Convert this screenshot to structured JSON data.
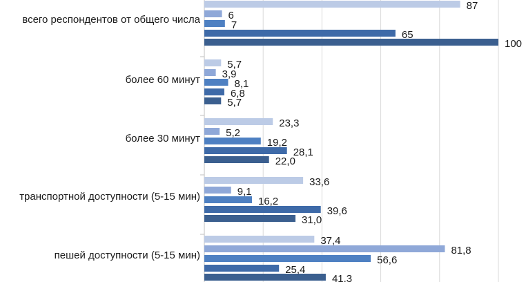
{
  "chart_data": {
    "type": "bar",
    "orientation": "horizontal",
    "categories": [
      "всего респондентов от общего числа",
      "более 60 минут",
      "более 30 минут",
      "транспортной доступности (5-15 мин)",
      "пешей доступности (5-15 мин)"
    ],
    "series": [
      {
        "values": [
          87,
          5.7,
          23.3,
          33.6,
          37.4
        ],
        "labels": [
          "87",
          "5,7",
          "23,3",
          "33,6",
          "37,4"
        ],
        "color": "#bccbe6"
      },
      {
        "values": [
          6,
          3.9,
          5.2,
          9.1,
          81.8
        ],
        "labels": [
          "6",
          "3,9",
          "5,2",
          "9,1",
          "81,8"
        ],
        "color": "#8fa8d8"
      },
      {
        "values": [
          7,
          8.1,
          19.2,
          16.2,
          56.6
        ],
        "labels": [
          "7",
          "8,1",
          "19,2",
          "16,2",
          "56,6"
        ],
        "color": "#4e80c2"
      },
      {
        "values": [
          65,
          6.8,
          28.1,
          39.6,
          25.4
        ],
        "labels": [
          "65",
          "6,8",
          "28,1",
          "39,6",
          "25,4"
        ],
        "color": "#3e6aa8"
      },
      {
        "values": [
          100,
          5.7,
          22.0,
          31.0,
          41.3
        ],
        "labels": [
          "100",
          "5,7",
          "22,0",
          "31,0",
          "41,3"
        ],
        "color": "#3b5f8f"
      }
    ],
    "xlim": [
      0,
      100
    ],
    "grid": true,
    "gridline_color": "#d9d9d9"
  }
}
